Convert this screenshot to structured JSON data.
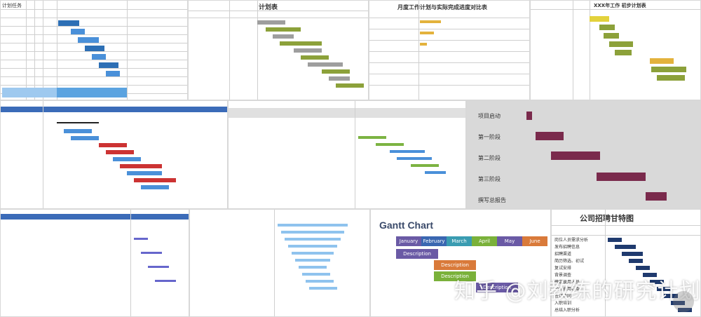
{
  "watermark": {
    "text": "知乎 @刘教练的研究计划"
  },
  "tiles": {
    "t1": {
      "label": "计划任务"
    },
    "t2": {
      "title": "计划表"
    },
    "t3": {
      "title": "月度工作计划与实际完成进度对比表"
    },
    "t4": {
      "title": "XXX年工作 初步计划表"
    },
    "t6": {
      "rows": [
        "项目启动",
        "第一阶段",
        "第二阶段",
        "第三阶段",
        "撰写总报告"
      ]
    },
    "t9": {
      "title": "Gantt Chart",
      "months": [
        "January",
        "February",
        "March",
        "April",
        "May",
        "June"
      ],
      "desc": "Description"
    },
    "t10": {
      "title": "公司招聘甘特图",
      "rows": [
        "岗位人员需求分析",
        "发布招聘信息",
        "招聘渠道",
        "简历筛选、初试",
        "复试安排",
        "背景调查",
        "确定录用人员",
        "公布录用名单",
        "签订合同",
        "入职培训",
        "总结入职分析"
      ]
    }
  },
  "colors": {
    "blue": "#4a90d9",
    "darkblue": "#1f3a6e",
    "maroon": "#7a2a4c",
    "olive": "#8ca13a",
    "green": "#7cb342",
    "gold": "#e3b23c",
    "gray": "#9e9e9e"
  }
}
